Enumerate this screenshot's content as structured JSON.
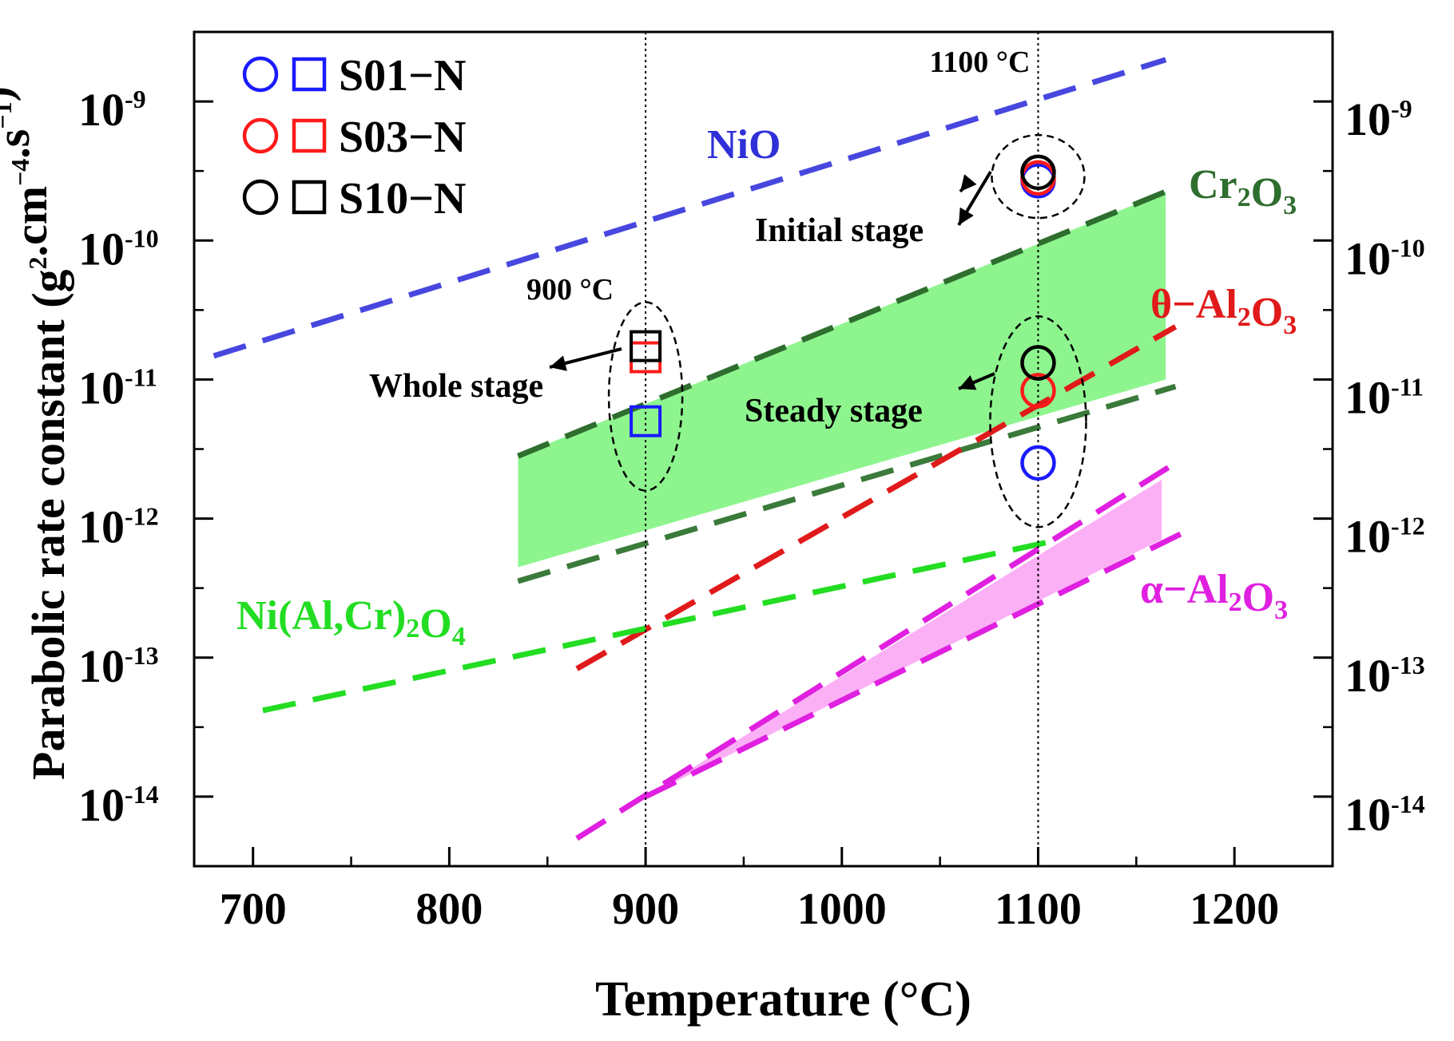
{
  "chart_data": {
    "type": "line",
    "title": "",
    "xlabel": "Temperature (°C)",
    "ylabel_parts": [
      "Parabolic rate constant (g",
      "2",
      ".cm",
      "−4",
      ".s",
      "−1",
      ")"
    ],
    "xlim": [
      670,
      1250
    ],
    "ylog_lim": [
      -14.5,
      -8.5
    ],
    "x_ticks": [
      700,
      800,
      900,
      1000,
      1100,
      1200
    ],
    "x_tick_labels": [
      "700",
      "800",
      "900",
      "1000",
      "1100",
      "1200"
    ],
    "y_ticks": [
      -14,
      -13,
      -12,
      -11,
      -10,
      -9
    ],
    "y_tick_labels": [
      {
        "base": "10",
        "exp": "-14"
      },
      {
        "base": "10",
        "exp": "-13"
      },
      {
        "base": "10",
        "exp": "-12"
      },
      {
        "base": "10",
        "exp": "-11"
      },
      {
        "base": "10",
        "exp": "-10"
      },
      {
        "base": "10",
        "exp": "-9"
      }
    ],
    "vertical_reference_lines": [
      {
        "x": 900,
        "label": "900 °C"
      },
      {
        "x": 1100,
        "label": "1100 °C"
      }
    ],
    "series": [
      {
        "name": "NiO",
        "color": "#4747e0",
        "style": "dashed",
        "x": [
          680,
          1165
        ],
        "logy": [
          -10.83,
          -8.7
        ]
      },
      {
        "name": "Cr2O3 upper",
        "color": "#2e6e2e",
        "style": "dashed",
        "x": [
          835,
          1170
        ],
        "logy": [
          -11.55,
          -9.62
        ]
      },
      {
        "name": "Cr2O3 lower",
        "color": "#3a7a3a",
        "style": "dashed",
        "x": [
          835,
          1170
        ],
        "logy": [
          -12.45,
          -11.05
        ]
      },
      {
        "name": "θ−Al2O3",
        "color": "#e01a1a",
        "style": "dashed",
        "x": [
          865,
          1170
        ],
        "logy": [
          -13.08,
          -10.62
        ]
      },
      {
        "name": "Ni(Al,Cr)2O4",
        "color": "#22dd22",
        "style": "dashed",
        "x": [
          705,
          1105
        ],
        "logy": [
          -13.38,
          -12.17
        ]
      },
      {
        "name": "α−Al2O3 upper",
        "color": "#e020e0",
        "style": "dashed",
        "x": [
          865,
          1170
        ],
        "logy": [
          -14.3,
          -11.6
        ]
      },
      {
        "name": "α−Al2O3 lower",
        "color": "#e020e0",
        "style": "dashed",
        "x": [
          900,
          1180
        ],
        "logy": [
          -14.0,
          -12.06
        ]
      }
    ],
    "bands": [
      {
        "name": "Cr2O3 range",
        "color": "#8ef58e",
        "x": [
          835,
          1165
        ],
        "upper": [
          -11.55,
          -9.65
        ],
        "lower": [
          -12.35,
          -11.0
        ]
      },
      {
        "name": "α−Al2O3 range",
        "color": "#fbb0f6",
        "x": [
          900,
          1163
        ],
        "upper": [
          -14.0,
          -11.72
        ],
        "lower": [
          -14.0,
          -12.15
        ]
      }
    ],
    "curve_labels": [
      {
        "series": "NiO",
        "color": "#3030d8",
        "parts": [
          {
            "t": "NiO"
          }
        ]
      },
      {
        "series": "Cr2O3",
        "color": "#2e6e2e",
        "parts": [
          {
            "t": "Cr"
          },
          {
            "t": "2",
            "sub": true
          },
          {
            "t": "O"
          },
          {
            "t": "3",
            "sub": true
          }
        ]
      },
      {
        "series": "θ−Al2O3",
        "color": "#e01a1a",
        "parts": [
          {
            "t": "θ−Al"
          },
          {
            "t": "2",
            "sub": true
          },
          {
            "t": "O"
          },
          {
            "t": "3",
            "sub": true
          }
        ]
      },
      {
        "series": "Ni(Al,Cr)2O4",
        "color": "#22dd22",
        "parts": [
          {
            "t": "Ni(Al,Cr)"
          },
          {
            "t": "2",
            "sub": true
          },
          {
            "t": "O"
          },
          {
            "t": "4",
            "sub": true
          }
        ]
      },
      {
        "series": "α−Al2O3",
        "color": "#e020e0",
        "parts": [
          {
            "t": "α−Al"
          },
          {
            "t": "2",
            "sub": true
          },
          {
            "t": "O"
          },
          {
            "t": "3",
            "sub": true
          }
        ]
      }
    ],
    "points": [
      {
        "sample": "S01−N",
        "stage": "whole",
        "marker": "square",
        "color": "#1a1aff",
        "x": 900,
        "logy": -11.3
      },
      {
        "sample": "S03−N",
        "stage": "whole",
        "marker": "square",
        "color": "#ff1a1a",
        "x": 900,
        "logy": -10.84
      },
      {
        "sample": "S10−N",
        "stage": "whole",
        "marker": "square",
        "color": "#000000",
        "x": 900,
        "logy": -10.76
      },
      {
        "sample": "S01−N",
        "stage": "initial",
        "marker": "circle",
        "color": "#1a1aff",
        "x": 1100,
        "logy": -9.57
      },
      {
        "sample": "S03−N",
        "stage": "initial",
        "marker": "circle",
        "color": "#ff1a1a",
        "x": 1100,
        "logy": -9.55
      },
      {
        "sample": "S10−N",
        "stage": "initial",
        "marker": "circle",
        "color": "#000000",
        "x": 1100,
        "logy": -9.51
      },
      {
        "sample": "S01−N",
        "stage": "steady",
        "marker": "circle",
        "color": "#1a1aff",
        "x": 1100,
        "logy": -11.6
      },
      {
        "sample": "S03−N",
        "stage": "steady",
        "marker": "circle",
        "color": "#ff1a1a",
        "x": 1100,
        "logy": -11.08
      },
      {
        "sample": "S10−N",
        "stage": "steady",
        "marker": "circle",
        "color": "#000000",
        "x": 1100,
        "logy": -10.88
      }
    ],
    "stage_groups": [
      {
        "label": "Whole stage",
        "x": 900,
        "logy_center": -11.15
      },
      {
        "label": "Initial stage",
        "x": 1100,
        "logy_center": -9.54
      },
      {
        "label": "Steady stage",
        "x": 1100,
        "logy_center": -11.2
      }
    ],
    "legend": [
      {
        "label": "S01−N",
        "color": "#1a1aff"
      },
      {
        "label": "S03−N",
        "color": "#ff1a1a"
      },
      {
        "label": "S10−N",
        "color": "#000000"
      }
    ],
    "legend_position": "top-left"
  }
}
